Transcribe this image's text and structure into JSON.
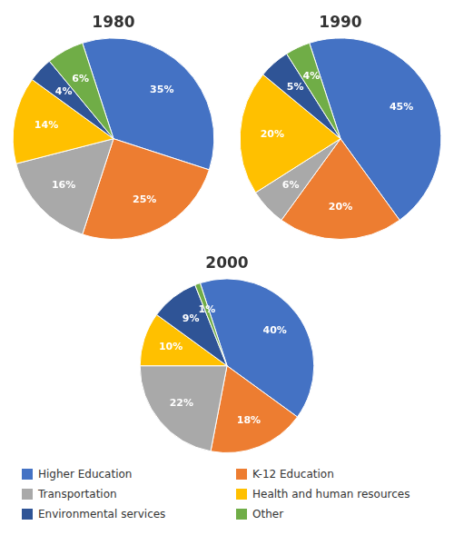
{
  "chart_data": [
    {
      "type": "pie",
      "title": "1980",
      "categories": [
        "Higher Education",
        "K-12 Education",
        "Transportation",
        "Health and human resources",
        "Environmental services",
        "Other"
      ],
      "values": [
        35,
        25,
        16,
        14,
        4,
        6
      ],
      "value_labels": [
        "35%",
        "25%",
        "16%",
        "14%",
        "4%",
        "6%"
      ],
      "colors": [
        "#4472C4",
        "#ED7D31",
        "#A9A9A9",
        "#FFC000",
        "#2F5496",
        "#70AD47"
      ],
      "data_labels": true
    },
    {
      "type": "pie",
      "title": "1990",
      "categories": [
        "Higher Education",
        "K-12 Education",
        "Transportation",
        "Health and human resources",
        "Environmental services",
        "Other"
      ],
      "values": [
        45,
        20,
        6,
        20,
        5,
        4
      ],
      "value_labels": [
        "45%",
        "20%",
        "6%",
        "20%",
        "5%",
        "4%"
      ],
      "colors": [
        "#4472C4",
        "#ED7D31",
        "#A9A9A9",
        "#FFC000",
        "#2F5496",
        "#70AD47"
      ],
      "data_labels": true
    },
    {
      "type": "pie",
      "title": "2000",
      "categories": [
        "Higher Education",
        "K-12 Education",
        "Transportation",
        "Health and human resources",
        "Environmental services",
        "Other"
      ],
      "values": [
        40,
        18,
        22,
        10,
        9,
        1
      ],
      "value_labels": [
        "40%",
        "18%",
        "22%",
        "10%",
        "9%",
        "1%"
      ],
      "colors": [
        "#4472C4",
        "#ED7D31",
        "#A9A9A9",
        "#FFC000",
        "#2F5496",
        "#70AD47"
      ],
      "data_labels": true,
      "legend": "bottom"
    }
  ]
}
